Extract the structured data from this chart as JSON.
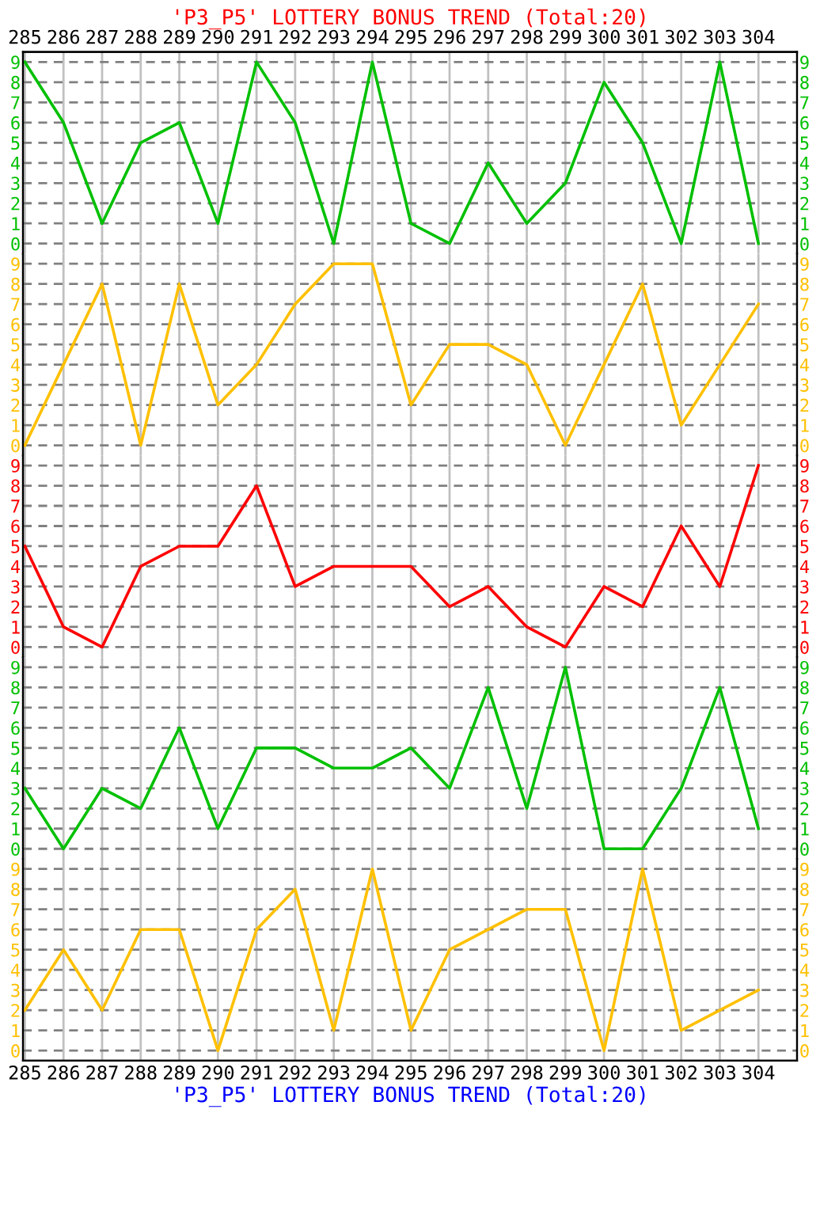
{
  "chart_data": [
    {
      "type": "line",
      "title": "'P3_P5' LOTTERY BONUS TREND (Total:20)",
      "categories": [
        "285",
        "286",
        "287",
        "288",
        "289",
        "290",
        "291",
        "292",
        "293",
        "294",
        "295",
        "296",
        "297",
        "298",
        "299",
        "300",
        "301",
        "302",
        "303",
        "304"
      ],
      "series": [
        {
          "color": "#00c000",
          "values": [
            9,
            6,
            1,
            5,
            6,
            1,
            9,
            6,
            0,
            9,
            1,
            0,
            4,
            1,
            3,
            8,
            5,
            0,
            9,
            0
          ]
        }
      ],
      "ylim": [
        -0.5,
        9.5
      ],
      "yticks": [
        0,
        1,
        2,
        3,
        4,
        5,
        6,
        7,
        8,
        9
      ],
      "y2lim": [
        -0.5,
        9.5
      ],
      "y2ticks": [
        0,
        1,
        2,
        3,
        4,
        5,
        6,
        7,
        8,
        9
      ],
      "grid": true,
      "marker": "none",
      "line_style": "solid"
    },
    {
      "type": "line",
      "categories": [
        "285",
        "286",
        "287",
        "288",
        "289",
        "290",
        "291",
        "292",
        "293",
        "294",
        "295",
        "296",
        "297",
        "298",
        "299",
        "300",
        "301",
        "302",
        "303",
        "304"
      ],
      "series": [
        {
          "color": "#ffc000",
          "values": [
            0,
            4,
            8,
            0,
            8,
            2,
            4,
            7,
            9,
            9,
            2,
            5,
            5,
            4,
            0,
            4,
            8,
            1,
            4,
            7
          ]
        }
      ],
      "ylim": [
        -0.5,
        9.5
      ],
      "yticks": [
        0,
        1,
        2,
        3,
        4,
        5,
        6,
        7,
        8,
        9
      ],
      "y2lim": [
        -0.5,
        9.5
      ],
      "y2ticks": [
        0,
        1,
        2,
        3,
        4,
        5,
        6,
        7,
        8,
        9
      ],
      "grid": true,
      "marker": "none",
      "line_style": "solid",
      "tick_labels": "y"
    },
    {
      "type": "line",
      "categories": [
        "285",
        "286",
        "287",
        "288",
        "289",
        "290",
        "291",
        "292",
        "293",
        "294",
        "295",
        "296",
        "297",
        "298",
        "299",
        "300",
        "301",
        "302",
        "303",
        "304"
      ],
      "series": [
        {
          "color": "#ff0000",
          "values": [
            5,
            1,
            0,
            4,
            5,
            5,
            8,
            3,
            4,
            4,
            4,
            2,
            3,
            1,
            0,
            3,
            2,
            6,
            3,
            9
          ]
        }
      ],
      "ylim": [
        -0.5,
        9.5
      ],
      "yticks": [
        0,
        1,
        2,
        3,
        4,
        5,
        6,
        7,
        8,
        9
      ],
      "y2lim": [
        -0.5,
        9.5
      ],
      "y2ticks": [
        0,
        1,
        2,
        3,
        4,
        5,
        6,
        7,
        8,
        9
      ],
      "grid": true,
      "marker": "none",
      "line_style": "solid",
      "tick_labels": "y"
    },
    {
      "type": "line",
      "categories": [
        "285",
        "286",
        "287",
        "288",
        "289",
        "290",
        "291",
        "292",
        "293",
        "294",
        "295",
        "296",
        "297",
        "298",
        "299",
        "300",
        "301",
        "302",
        "303",
        "304"
      ],
      "series": [
        {
          "color": "#00c000",
          "values": [
            3,
            0,
            3,
            2,
            6,
            1,
            5,
            5,
            4,
            4,
            5,
            3,
            8,
            2,
            9,
            0,
            0,
            3,
            8,
            1
          ]
        }
      ],
      "ylim": [
        -0.5,
        9.5
      ],
      "yticks": [
        0,
        1,
        2,
        3,
        4,
        5,
        6,
        7,
        8,
        9
      ],
      "y2lim": [
        -0.5,
        9.5
      ],
      "y2ticks": [
        0,
        1,
        2,
        3,
        4,
        5,
        6,
        7,
        8,
        9
      ],
      "grid": true,
      "marker": "none",
      "line_style": "solid",
      "tick_labels": "y"
    },
    {
      "type": "line",
      "categories": [
        "285",
        "286",
        "287",
        "288",
        "289",
        "290",
        "291",
        "292",
        "293",
        "294",
        "295",
        "296",
        "297",
        "298",
        "299",
        "300",
        "301",
        "302",
        "303",
        "304"
      ],
      "series": [
        {
          "color": "#ffc000",
          "values": [
            2,
            5,
            2,
            6,
            6,
            0,
            6,
            8,
            1,
            9,
            1,
            5,
            6,
            7,
            7,
            0,
            9,
            1,
            2,
            3
          ]
        }
      ],
      "ylim": [
        -0.5,
        9.5
      ],
      "yticks": [
        0,
        1,
        2,
        3,
        4,
        5,
        6,
        7,
        8,
        9
      ],
      "y2lim": [
        -0.5,
        9.5
      ],
      "y2ticks": [
        0,
        1,
        2,
        3,
        4,
        5,
        6,
        7,
        8,
        9
      ],
      "grid": true,
      "marker": "none",
      "line_style": "solid",
      "annotations": [
        "'P3_P5' LOTTERY BONUS TREND (Total:20)"
      ]
    }
  ]
}
